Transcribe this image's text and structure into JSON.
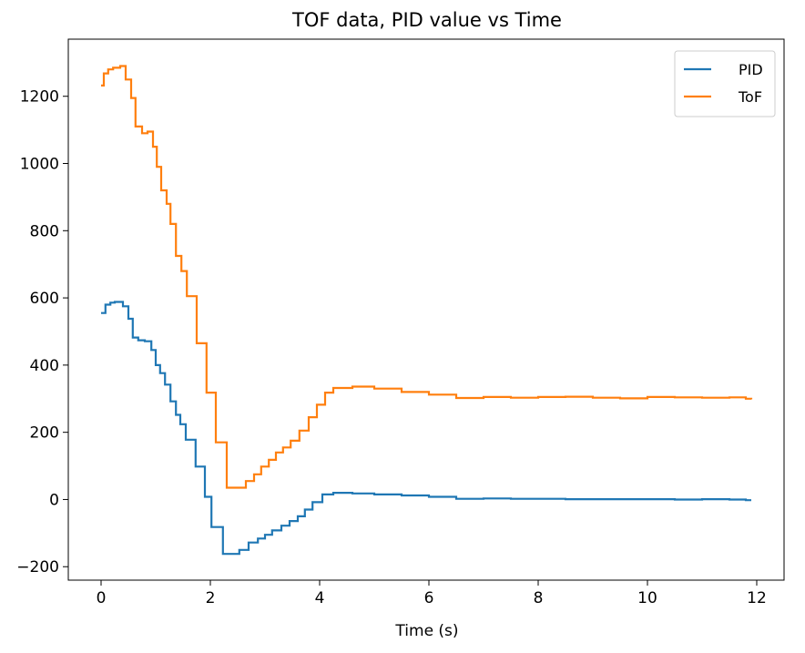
{
  "chart_data": {
    "type": "line",
    "title": "TOF data, PID value vs Time",
    "xlabel": "Time (s)",
    "ylabel": "",
    "xlim": [
      -0.6,
      12.5
    ],
    "ylim": [
      -240,
      1370
    ],
    "xticks": [
      0,
      2,
      4,
      6,
      8,
      10,
      12
    ],
    "yticks": [
      -200,
      0,
      200,
      400,
      600,
      800,
      1000,
      1200
    ],
    "grid": false,
    "legend": "top-right",
    "step": true,
    "series": [
      {
        "name": "PID",
        "color": "#1f77b4",
        "points": [
          [
            0,
            555
          ],
          [
            0.08,
            580
          ],
          [
            0.17,
            586
          ],
          [
            0.25,
            588
          ],
          [
            0.4,
            575
          ],
          [
            0.5,
            538
          ],
          [
            0.58,
            482
          ],
          [
            0.68,
            474
          ],
          [
            0.8,
            471
          ],
          [
            0.92,
            445
          ],
          [
            1.0,
            400
          ],
          [
            1.08,
            376
          ],
          [
            1.17,
            342
          ],
          [
            1.27,
            292
          ],
          [
            1.37,
            252
          ],
          [
            1.45,
            224
          ],
          [
            1.55,
            178
          ],
          [
            1.73,
            98
          ],
          [
            1.9,
            8
          ],
          [
            2.02,
            -82
          ],
          [
            2.23,
            -162
          ],
          [
            2.53,
            -150
          ],
          [
            2.7,
            -128
          ],
          [
            2.87,
            -116
          ],
          [
            3.0,
            -105
          ],
          [
            3.13,
            -92
          ],
          [
            3.3,
            -78
          ],
          [
            3.45,
            -64
          ],
          [
            3.6,
            -50
          ],
          [
            3.73,
            -30
          ],
          [
            3.87,
            -8
          ],
          [
            4.05,
            15
          ],
          [
            4.25,
            20
          ],
          [
            4.6,
            18
          ],
          [
            5.0,
            15
          ],
          [
            5.5,
            12
          ],
          [
            6.0,
            8
          ],
          [
            6.5,
            2
          ],
          [
            7.0,
            3
          ],
          [
            7.5,
            2
          ],
          [
            8.0,
            2
          ],
          [
            8.5,
            1
          ],
          [
            9.0,
            1
          ],
          [
            9.5,
            1
          ],
          [
            10.0,
            1
          ],
          [
            10.5,
            0
          ],
          [
            11.0,
            1
          ],
          [
            11.5,
            0
          ],
          [
            11.8,
            -2
          ],
          [
            11.9,
            -2
          ]
        ]
      },
      {
        "name": "ToF",
        "color": "#ff7f0e",
        "points": [
          [
            0,
            1232
          ],
          [
            0.05,
            1268
          ],
          [
            0.13,
            1280
          ],
          [
            0.22,
            1285
          ],
          [
            0.35,
            1290
          ],
          [
            0.45,
            1250
          ],
          [
            0.55,
            1195
          ],
          [
            0.63,
            1110
          ],
          [
            0.75,
            1090
          ],
          [
            0.85,
            1095
          ],
          [
            0.95,
            1050
          ],
          [
            1.02,
            990
          ],
          [
            1.1,
            920
          ],
          [
            1.2,
            880
          ],
          [
            1.27,
            820
          ],
          [
            1.37,
            725
          ],
          [
            1.47,
            680
          ],
          [
            1.57,
            605
          ],
          [
            1.75,
            465
          ],
          [
            1.93,
            318
          ],
          [
            2.1,
            170
          ],
          [
            2.3,
            35
          ],
          [
            2.5,
            35
          ],
          [
            2.65,
            55
          ],
          [
            2.8,
            75
          ],
          [
            2.93,
            98
          ],
          [
            3.07,
            118
          ],
          [
            3.2,
            140
          ],
          [
            3.33,
            155
          ],
          [
            3.47,
            175
          ],
          [
            3.63,
            205
          ],
          [
            3.8,
            245
          ],
          [
            3.95,
            282
          ],
          [
            4.1,
            318
          ],
          [
            4.25,
            332
          ],
          [
            4.6,
            336
          ],
          [
            5.0,
            330
          ],
          [
            5.5,
            320
          ],
          [
            6.0,
            312
          ],
          [
            6.5,
            302
          ],
          [
            7.0,
            305
          ],
          [
            7.5,
            303
          ],
          [
            8.0,
            305
          ],
          [
            8.5,
            306
          ],
          [
            9.0,
            303
          ],
          [
            9.5,
            301
          ],
          [
            10.0,
            305
          ],
          [
            10.5,
            304
          ],
          [
            11.0,
            303
          ],
          [
            11.5,
            304
          ],
          [
            11.8,
            300
          ],
          [
            11.9,
            298
          ]
        ]
      }
    ]
  }
}
